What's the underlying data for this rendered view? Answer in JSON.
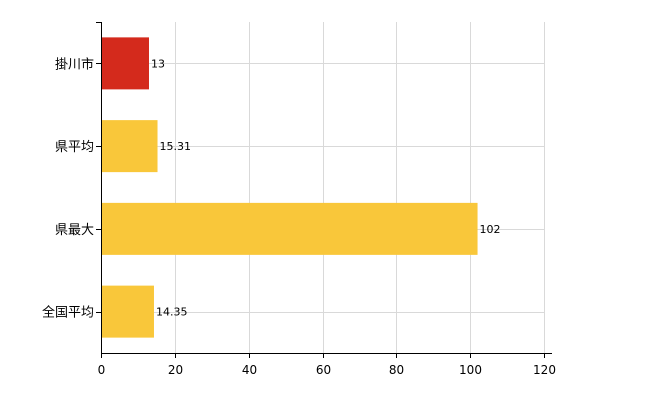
{
  "chart_data": {
    "type": "bar",
    "orientation": "horizontal",
    "title": "",
    "xlabel": "",
    "ylabel": "",
    "categories": [
      "掛川市",
      "県平均",
      "県最大",
      "全国平均"
    ],
    "values": [
      13,
      15.31,
      102,
      14.35
    ],
    "value_labels": [
      "13",
      "15.31",
      "102",
      "14.35"
    ],
    "xlim": [
      0,
      120
    ],
    "x_ticks": [
      0,
      20,
      40,
      60,
      80,
      100,
      120
    ],
    "x_tick_labels": [
      "0",
      "20",
      "40",
      "60",
      "80",
      "100",
      "120"
    ],
    "grid": true,
    "legend": "none",
    "colors": {
      "highlight": "#d42a1c",
      "default": "#f9c73a",
      "grid": "#d9d9d9",
      "axis": "#000000"
    },
    "highlight_index": 0
  }
}
